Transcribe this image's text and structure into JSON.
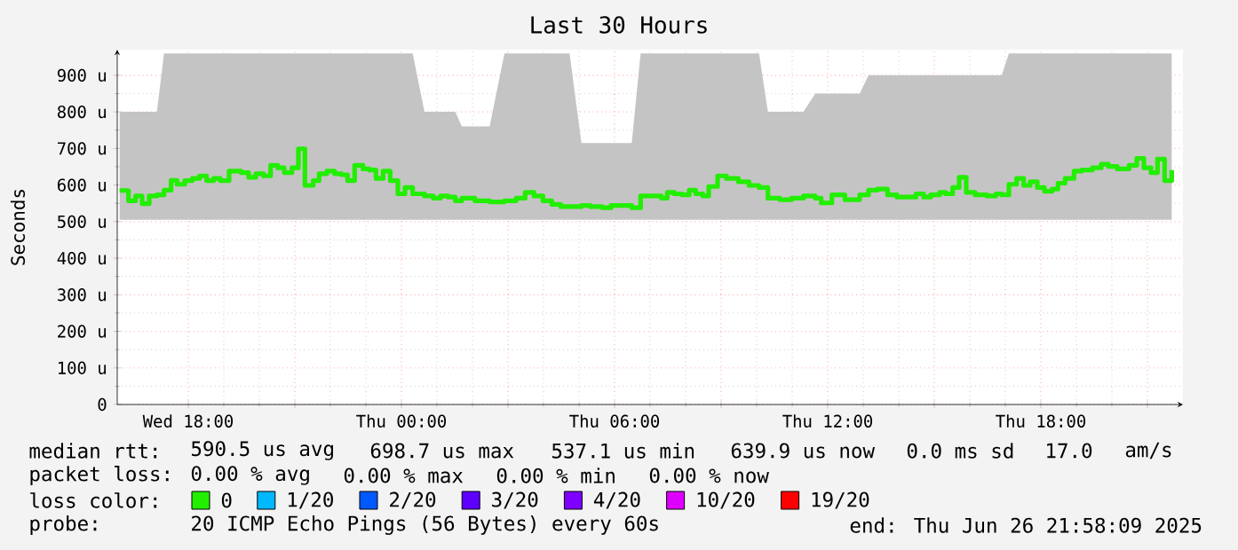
{
  "chart_data": {
    "type": "step",
    "title": "Last 30 Hours",
    "ylabel": "Seconds",
    "legend_title": "loss color:",
    "legend": "bottom",
    "grid": true,
    "xlim": [
      "2025-06-25T16:00",
      "2025-06-26T22:00"
    ],
    "ylim": [
      0,
      970
    ],
    "xticks": [
      {
        "value": "2025-06-25T18:00",
        "label": "Wed 18:00"
      },
      {
        "value": "2025-06-25T21:00",
        "label": null
      },
      {
        "value": "2025-06-26T00:00",
        "label": "Thu 00:00"
      },
      {
        "value": "2025-06-26T03:00",
        "label": null
      },
      {
        "value": "2025-06-26T06:00",
        "label": "Thu 06:00"
      },
      {
        "value": "2025-06-26T09:00",
        "label": null
      },
      {
        "value": "2025-06-26T12:00",
        "label": "Thu 12:00"
      },
      {
        "value": "2025-06-26T15:00",
        "label": null
      },
      {
        "value": "2025-06-26T18:00",
        "label": "Thu 18:00"
      },
      {
        "value": "2025-06-26T21:00",
        "label": null
      }
    ],
    "yticks": [
      0,
      {
        "value": 100,
        "label": "100 u"
      },
      {
        "value": 200,
        "label": "200 u"
      },
      {
        "value": 300,
        "label": "300 u"
      },
      {
        "value": 400,
        "label": "400 u"
      },
      {
        "value": 500,
        "label": "500 u"
      },
      {
        "value": 600,
        "label": "600 u"
      },
      {
        "value": 700,
        "label": "700 u"
      },
      {
        "value": 800,
        "label": "800 u"
      },
      {
        "value": 900,
        "label": "900 u"
      }
    ],
    "x": [
      "2025-06-25T16:04",
      "2025-06-25T16:19",
      "2025-06-25T16:31",
      "2025-06-25T16:42",
      "2025-06-25T16:54",
      "2025-06-25T17:07",
      "2025-06-25T17:19",
      "2025-06-25T17:31",
      "2025-06-25T17:41",
      "2025-06-25T17:54",
      "2025-06-25T18:07",
      "2025-06-25T18:19",
      "2025-06-25T18:31",
      "2025-06-25T18:43",
      "2025-06-25T18:54",
      "2025-06-25T19:09",
      "2025-06-25T19:29",
      "2025-06-25T19:42",
      "2025-06-25T19:54",
      "2025-06-25T20:07",
      "2025-06-25T20:19",
      "2025-06-25T20:31",
      "2025-06-25T20:42",
      "2025-06-25T20:55",
      "2025-06-25T21:06",
      "2025-06-25T21:17",
      "2025-06-25T21:31",
      "2025-06-25T21:41",
      "2025-06-25T21:54",
      "2025-06-25T22:07",
      "2025-06-25T22:19",
      "2025-06-25T22:29",
      "2025-06-25T22:41",
      "2025-06-25T22:55",
      "2025-06-25T23:06",
      "2025-06-25T23:17",
      "2025-06-25T23:29",
      "2025-06-25T23:41",
      "2025-06-25T23:54",
      "2025-06-26T00:06",
      "2025-06-26T00:19",
      "2025-06-26T00:39",
      "2025-06-26T00:54",
      "2025-06-26T01:06",
      "2025-06-26T01:19",
      "2025-06-26T01:31",
      "2025-06-26T01:42",
      "2025-06-26T02:04",
      "2025-06-26T02:29",
      "2025-06-26T02:54",
      "2025-06-26T03:14",
      "2025-06-26T03:29",
      "2025-06-26T03:44",
      "2025-06-26T03:59",
      "2025-06-26T04:14",
      "2025-06-26T04:29",
      "2025-06-26T04:44",
      "2025-06-26T05:04",
      "2025-06-26T05:19",
      "2025-06-26T05:39",
      "2025-06-26T05:54",
      "2025-06-26T06:09",
      "2025-06-26T06:29",
      "2025-06-26T06:44",
      "2025-06-26T07:04",
      "2025-06-26T07:19",
      "2025-06-26T07:29",
      "2025-06-26T07:41",
      "2025-06-26T07:54",
      "2025-06-26T08:06",
      "2025-06-26T08:17",
      "2025-06-26T08:29",
      "2025-06-26T08:39",
      "2025-06-26T08:54",
      "2025-06-26T09:09",
      "2025-06-26T09:29",
      "2025-06-26T09:47",
      "2025-06-26T10:04",
      "2025-06-26T10:19",
      "2025-06-26T10:39",
      "2025-06-26T10:59",
      "2025-06-26T11:19",
      "2025-06-26T11:39",
      "2025-06-26T11:49",
      "2025-06-26T12:07",
      "2025-06-26T12:29",
      "2025-06-26T12:44",
      "2025-06-26T12:54",
      "2025-06-26T13:09",
      "2025-06-26T13:24",
      "2025-06-26T13:41",
      "2025-06-26T13:57",
      "2025-06-26T14:14",
      "2025-06-26T14:29",
      "2025-06-26T14:42",
      "2025-06-26T14:54",
      "2025-06-26T15:09",
      "2025-06-26T15:19",
      "2025-06-26T15:31",
      "2025-06-26T15:42",
      "2025-06-26T15:54",
      "2025-06-26T16:09",
      "2025-06-26T16:29",
      "2025-06-26T16:44",
      "2025-06-26T16:54",
      "2025-06-26T17:06",
      "2025-06-26T17:19",
      "2025-06-26T17:31",
      "2025-06-26T17:42",
      "2025-06-26T17:54",
      "2025-06-26T18:06",
      "2025-06-26T18:19",
      "2025-06-26T18:29",
      "2025-06-26T18:41",
      "2025-06-26T18:56",
      "2025-06-26T19:09",
      "2025-06-26T19:27",
      "2025-06-26T19:42",
      "2025-06-26T19:54",
      "2025-06-26T20:09",
      "2025-06-26T20:29",
      "2025-06-26T20:42",
      "2025-06-26T20:54",
      "2025-06-26T21:06",
      "2025-06-26T21:17",
      "2025-06-26T21:29",
      "2025-06-26T21:41"
    ],
    "series": [
      {
        "name": "0",
        "color": "#22ee00",
        "values": [
          585,
          557,
          570,
          549,
          570,
          573,
          586,
          613,
          602,
          612,
          618,
          625,
          612,
          618,
          612,
          638,
          634,
          621,
          631,
          625,
          654,
          647,
          634,
          647,
          699,
          599,
          612,
          631,
          638,
          631,
          628,
          612,
          654,
          644,
          641,
          618,
          638,
          612,
          576,
          593,
          576,
          570,
          564,
          570,
          567,
          557,
          564,
          557,
          554,
          557,
          564,
          580,
          570,
          557,
          547,
          541,
          541,
          544,
          541,
          538,
          544,
          544,
          538,
          570,
          570,
          564,
          580,
          576,
          573,
          586,
          576,
          570,
          596,
          625,
          618,
          609,
          599,
          593,
          564,
          560,
          564,
          570,
          564,
          551,
          573,
          560,
          560,
          573,
          586,
          589,
          573,
          567,
          567,
          576,
          567,
          573,
          580,
          576,
          593,
          621,
          580,
          573,
          570,
          576,
          573,
          602,
          618,
          599,
          609,
          593,
          583,
          589,
          605,
          618,
          638,
          641,
          647,
          657,
          651,
          644,
          654,
          673,
          647,
          634,
          671,
          612,
          641
        ],
        "lower": [
          505,
          505,
          505,
          505,
          505,
          505,
          505,
          505,
          505,
          505,
          505,
          505,
          505,
          505,
          505,
          505,
          505,
          505,
          505,
          505,
          505,
          505,
          505,
          505,
          505,
          505,
          505,
          505,
          505,
          505,
          505,
          505,
          505,
          505,
          505,
          505,
          505,
          505,
          505,
          505,
          505,
          505,
          505,
          505,
          505,
          505,
          505,
          505,
          505,
          505,
          505,
          505,
          505,
          505,
          505,
          505,
          505,
          505,
          505,
          505,
          505,
          505,
          505,
          505,
          505,
          505,
          505,
          505,
          505,
          505,
          505,
          505,
          505,
          505,
          505,
          505,
          505,
          505,
          505,
          505,
          505,
          505,
          505,
          505,
          505,
          505,
          505,
          505,
          505,
          505,
          505,
          505,
          505,
          505,
          505,
          505,
          505,
          505,
          505,
          505,
          505,
          505,
          505,
          505,
          505,
          505,
          505,
          505,
          505,
          505,
          505,
          505,
          505,
          505,
          505,
          505,
          505,
          505,
          505,
          505,
          505,
          505,
          505,
          505,
          505,
          505,
          505
        ],
        "upper": [
          800,
          800,
          800,
          800,
          800,
          800,
          960,
          960,
          960,
          960,
          960,
          960,
          960,
          960,
          960,
          960,
          960,
          960,
          960,
          960,
          960,
          960,
          960,
          960,
          960,
          960,
          960,
          960,
          960,
          960,
          960,
          960,
          960,
          960,
          960,
          960,
          960,
          960,
          960,
          960,
          960,
          800,
          800,
          800,
          800,
          800,
          760,
          760,
          760,
          960,
          960,
          960,
          960,
          960,
          960,
          960,
          960,
          715,
          715,
          715,
          715,
          715,
          715,
          960,
          960,
          960,
          960,
          960,
          960,
          960,
          960,
          960,
          960,
          960,
          960,
          960,
          960,
          960,
          800,
          800,
          800,
          800,
          850,
          850,
          850,
          850,
          850,
          850,
          900,
          900,
          900,
          900,
          900,
          900,
          900,
          900,
          900,
          900,
          900,
          900,
          900,
          900,
          900,
          900,
          900,
          960,
          960,
          960,
          960,
          960,
          960,
          960,
          960,
          960,
          960,
          960,
          960,
          960,
          960,
          960,
          960,
          960,
          960,
          960,
          960,
          960,
          960
        ]
      },
      {
        "name": "1/20",
        "color": "#00b8ff",
        "values": [
          null,
          null,
          null,
          null,
          null,
          null,
          null,
          null,
          null,
          null,
          null,
          null,
          null,
          null,
          null,
          null,
          null,
          null,
          null,
          null,
          null,
          null,
          null,
          null,
          null,
          null,
          null,
          null,
          null,
          null,
          null,
          null,
          null,
          null,
          null,
          null,
          null,
          null,
          null,
          null,
          null,
          null,
          null,
          null,
          null,
          null,
          null,
          null,
          null,
          null,
          null,
          null,
          null,
          null,
          null,
          null,
          null,
          null,
          null,
          null,
          null,
          null,
          null,
          null,
          null,
          null,
          null,
          null,
          null,
          null,
          null,
          null,
          null,
          null,
          null,
          null,
          null,
          null,
          null,
          null,
          null,
          null,
          null,
          null,
          null,
          null,
          null,
          null,
          null,
          null,
          null,
          null,
          null,
          null,
          null,
          null,
          null,
          null,
          null,
          null,
          null,
          null,
          null,
          null,
          null,
          null,
          null,
          null,
          null,
          null,
          null,
          null,
          null,
          null,
          null,
          null,
          null,
          null,
          null,
          null,
          null,
          null,
          null,
          null,
          null,
          null,
          null
        ]
      },
      {
        "name": "2/20",
        "color": "#0059ff",
        "values": [
          null,
          null,
          null,
          null,
          null,
          null,
          null,
          null,
          null,
          null,
          null,
          null,
          null,
          null,
          null,
          null,
          null,
          null,
          null,
          null,
          null,
          null,
          null,
          null,
          null,
          null,
          null,
          null,
          null,
          null,
          null,
          null,
          null,
          null,
          null,
          null,
          null,
          null,
          null,
          null,
          null,
          null,
          null,
          null,
          null,
          null,
          null,
          null,
          null,
          null,
          null,
          null,
          null,
          null,
          null,
          null,
          null,
          null,
          null,
          null,
          null,
          null,
          null,
          null,
          null,
          null,
          null,
          null,
          null,
          null,
          null,
          null,
          null,
          null,
          null,
          null,
          null,
          null,
          null,
          null,
          null,
          null,
          null,
          null,
          null,
          null,
          null,
          null,
          null,
          null,
          null,
          null,
          null,
          null,
          null,
          null,
          null,
          null,
          null,
          null,
          null,
          null,
          null,
          null,
          null,
          null,
          null,
          null,
          null,
          null,
          null,
          null,
          null,
          null,
          null,
          null,
          null,
          null,
          null,
          null,
          null,
          null,
          null,
          null,
          null,
          null,
          null
        ]
      },
      {
        "name": "3/20",
        "color": "#5e00ff",
        "values": [
          null,
          null,
          null,
          null,
          null,
          null,
          null,
          null,
          null,
          null,
          null,
          null,
          null,
          null,
          null,
          null,
          null,
          null,
          null,
          null,
          null,
          null,
          null,
          null,
          null,
          null,
          null,
          null,
          null,
          null,
          null,
          null,
          null,
          null,
          null,
          null,
          null,
          null,
          null,
          null,
          null,
          null,
          null,
          null,
          null,
          null,
          null,
          null,
          null,
          null,
          null,
          null,
          null,
          null,
          null,
          null,
          null,
          null,
          null,
          null,
          null,
          null,
          null,
          null,
          null,
          null,
          null,
          null,
          null,
          null,
          null,
          null,
          null,
          null,
          null,
          null,
          null,
          null,
          null,
          null,
          null,
          null,
          null,
          null,
          null,
          null,
          null,
          null,
          null,
          null,
          null,
          null,
          null,
          null,
          null,
          null,
          null,
          null,
          null,
          null,
          null,
          null,
          null,
          null,
          null,
          null,
          null,
          null,
          null,
          null,
          null,
          null,
          null,
          null,
          null,
          null,
          null,
          null,
          null,
          null,
          null,
          null,
          null,
          null,
          null,
          null,
          null
        ]
      },
      {
        "name": "4/20",
        "color": "#7e00ff",
        "values": [
          null,
          null,
          null,
          null,
          null,
          null,
          null,
          null,
          null,
          null,
          null,
          null,
          null,
          null,
          null,
          null,
          null,
          null,
          null,
          null,
          null,
          null,
          null,
          null,
          null,
          null,
          null,
          null,
          null,
          null,
          null,
          null,
          null,
          null,
          null,
          null,
          null,
          null,
          null,
          null,
          null,
          null,
          null,
          null,
          null,
          null,
          null,
          null,
          null,
          null,
          null,
          null,
          null,
          null,
          null,
          null,
          null,
          null,
          null,
          null,
          null,
          null,
          null,
          null,
          null,
          null,
          null,
          null,
          null,
          null,
          null,
          null,
          null,
          null,
          null,
          null,
          null,
          null,
          null,
          null,
          null,
          null,
          null,
          null,
          null,
          null,
          null,
          null,
          null,
          null,
          null,
          null,
          null,
          null,
          null,
          null,
          null,
          null,
          null,
          null,
          null,
          null,
          null,
          null,
          null,
          null,
          null,
          null,
          null,
          null,
          null,
          null,
          null,
          null,
          null,
          null,
          null,
          null,
          null,
          null,
          null,
          null,
          null,
          null,
          null,
          null,
          null
        ]
      },
      {
        "name": "10/20",
        "color": "#dd00ff",
        "values": [
          null,
          null,
          null,
          null,
          null,
          null,
          null,
          null,
          null,
          null,
          null,
          null,
          null,
          null,
          null,
          null,
          null,
          null,
          null,
          null,
          null,
          null,
          null,
          null,
          null,
          null,
          null,
          null,
          null,
          null,
          null,
          null,
          null,
          null,
          null,
          null,
          null,
          null,
          null,
          null,
          null,
          null,
          null,
          null,
          null,
          null,
          null,
          null,
          null,
          null,
          null,
          null,
          null,
          null,
          null,
          null,
          null,
          null,
          null,
          null,
          null,
          null,
          null,
          null,
          null,
          null,
          null,
          null,
          null,
          null,
          null,
          null,
          null,
          null,
          null,
          null,
          null,
          null,
          null,
          null,
          null,
          null,
          null,
          null,
          null,
          null,
          null,
          null,
          null,
          null,
          null,
          null,
          null,
          null,
          null,
          null,
          null,
          null,
          null,
          null,
          null,
          null,
          null,
          null,
          null,
          null,
          null,
          null,
          null,
          null,
          null,
          null,
          null,
          null,
          null,
          null,
          null,
          null,
          null,
          null,
          null,
          null,
          null,
          null,
          null,
          null,
          null
        ]
      },
      {
        "name": "19/20",
        "color": "#ff0000",
        "values": [
          null,
          null,
          null,
          null,
          null,
          null,
          null,
          null,
          null,
          null,
          null,
          null,
          null,
          null,
          null,
          null,
          null,
          null,
          null,
          null,
          null,
          null,
          null,
          null,
          null,
          null,
          null,
          null,
          null,
          null,
          null,
          null,
          null,
          null,
          null,
          null,
          null,
          null,
          null,
          null,
          null,
          null,
          null,
          null,
          null,
          null,
          null,
          null,
          null,
          null,
          null,
          null,
          null,
          null,
          null,
          null,
          null,
          null,
          null,
          null,
          null,
          null,
          null,
          null,
          null,
          null,
          null,
          null,
          null,
          null,
          null,
          null,
          null,
          null,
          null,
          null,
          null,
          null,
          null,
          null,
          null,
          null,
          null,
          null,
          null,
          null,
          null,
          null,
          null,
          null,
          null,
          null,
          null,
          null,
          null,
          null,
          null,
          null,
          null,
          null,
          null,
          null,
          null,
          null,
          null,
          null,
          null,
          null,
          null,
          null,
          null,
          null,
          null,
          null,
          null,
          null,
          null,
          null,
          null,
          null,
          null,
          null,
          null,
          null,
          null,
          null,
          null
        ]
      }
    ],
    "annotations": [
      "median rtt:",
      "590.5 us avg",
      "698.7 us max",
      "537.1 us min",
      "639.9 us now",
      "0.0 ms sd",
      "17.0",
      "am/s",
      "packet loss:",
      "0.00 % avg",
      "0.00 % max",
      "0.00 % min",
      "0.00 % now",
      "probe:",
      "20 ICMP Echo Pings (56 Bytes) every 60s",
      "end: Thu Jun 26 21:58:09 2025"
    ]
  }
}
